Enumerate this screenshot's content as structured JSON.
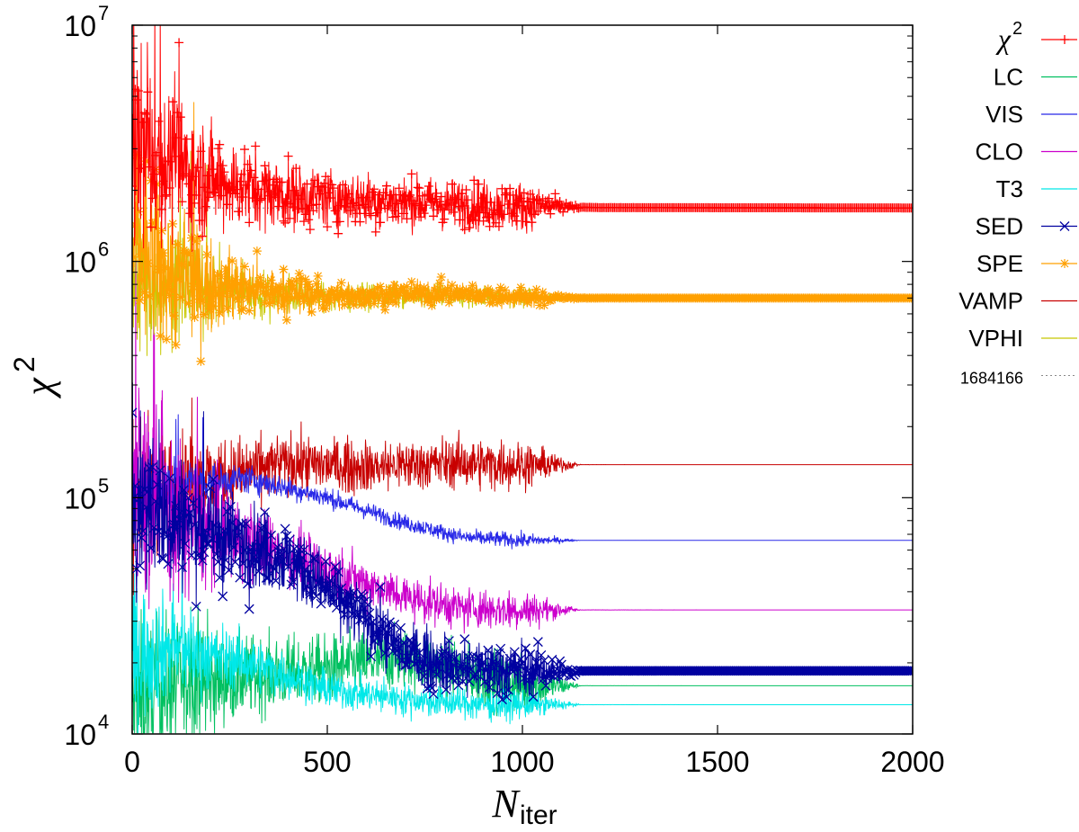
{
  "chart_data": {
    "type": "line",
    "title": "",
    "xlabel": {
      "base": "N",
      "subscript": "iter"
    },
    "ylabel": {
      "base": "χ",
      "superscript": "2"
    },
    "xlim": [
      0,
      2000
    ],
    "ylim": [
      10000,
      10000000
    ],
    "yscale": "log",
    "grid": false,
    "legend_position": "right",
    "x_ticks": [
      {
        "value": 0,
        "label": "0"
      },
      {
        "value": 500,
        "label": "500"
      },
      {
        "value": 1000,
        "label": "1000"
      },
      {
        "value": 1500,
        "label": "1500"
      },
      {
        "value": 2000,
        "label": "2000"
      }
    ],
    "y_ticks": [
      {
        "value": 10000,
        "base": "10",
        "exp": "4"
      },
      {
        "value": 100000,
        "base": "10",
        "exp": "5"
      },
      {
        "value": 1000000,
        "base": "10",
        "exp": "6"
      },
      {
        "value": 10000000,
        "base": "10",
        "exp": "7"
      }
    ],
    "series": [
      {
        "name": "χ2",
        "label_base": "χ",
        "label_sup": "2",
        "color": "#ff0000",
        "marker": "plus",
        "noise": 0.1,
        "start_noise": 0.35,
        "points": [
          [
            0,
            3000000
          ],
          [
            100,
            2600000
          ],
          [
            200,
            2200000
          ],
          [
            400,
            1900000
          ],
          [
            700,
            1780000
          ],
          [
            1000,
            1710000
          ],
          [
            1200,
            1690000
          ],
          [
            2000,
            1684166
          ]
        ]
      },
      {
        "name": "LC",
        "color": "#00c060",
        "marker": "none",
        "noise": 0.12,
        "start_noise": 0.25,
        "points": [
          [
            0,
            13000
          ],
          [
            100,
            16000
          ],
          [
            300,
            17500
          ],
          [
            500,
            19000
          ],
          [
            700,
            21000
          ],
          [
            900,
            17500
          ],
          [
            1000,
            16000
          ],
          [
            2000,
            16000
          ]
        ]
      },
      {
        "name": "VIS",
        "color": "#2828e8",
        "marker": "none",
        "noise": 0.03,
        "start_noise": 0.15,
        "points": [
          [
            0,
            110000
          ],
          [
            100,
            115000
          ],
          [
            300,
            120000
          ],
          [
            500,
            100000
          ],
          [
            700,
            78000
          ],
          [
            850,
            68000
          ],
          [
            1000,
            66000
          ],
          [
            2000,
            66000
          ]
        ]
      },
      {
        "name": "CLO",
        "color": "#cc00cc",
        "marker": "none",
        "noise": 0.08,
        "start_noise": 0.45,
        "points": [
          [
            0,
            110000
          ],
          [
            100,
            80000
          ],
          [
            300,
            65000
          ],
          [
            500,
            50000
          ],
          [
            700,
            38000
          ],
          [
            850,
            34000
          ],
          [
            1000,
            33500
          ],
          [
            2000,
            33500
          ]
        ]
      },
      {
        "name": "T3",
        "color": "#00e8e8",
        "marker": "none",
        "noise": 0.06,
        "start_noise": 0.25,
        "points": [
          [
            0,
            22000
          ],
          [
            100,
            23000
          ],
          [
            300,
            20000
          ],
          [
            500,
            15500
          ],
          [
            700,
            14000
          ],
          [
            900,
            13300
          ],
          [
            1000,
            13300
          ],
          [
            2000,
            13300
          ]
        ]
      },
      {
        "name": "SED",
        "color": "#0000a0",
        "marker": "cross",
        "noise": 0.12,
        "start_noise": 0.3,
        "points": [
          [
            0,
            100000
          ],
          [
            100,
            80000
          ],
          [
            200,
            72000
          ],
          [
            400,
            55000
          ],
          [
            550,
            35000
          ],
          [
            700,
            22000
          ],
          [
            850,
            19000
          ],
          [
            1000,
            18500
          ],
          [
            2000,
            18500
          ]
        ]
      },
      {
        "name": "SPE",
        "color": "#ffa000",
        "marker": "star",
        "noise": 0.04,
        "start_noise": 0.45,
        "points": [
          [
            0,
            1200000
          ],
          [
            100,
            850000
          ],
          [
            300,
            760000
          ],
          [
            500,
            710000
          ],
          [
            800,
            740000
          ],
          [
            1000,
            700000
          ],
          [
            2000,
            700000
          ]
        ]
      },
      {
        "name": "VAMP",
        "color": "#c80000",
        "marker": "none",
        "noise": 0.1,
        "start_noise": 0.2,
        "points": [
          [
            0,
            100000
          ],
          [
            200,
            120000
          ],
          [
            400,
            140000
          ],
          [
            600,
            135000
          ],
          [
            800,
            140000
          ],
          [
            1000,
            138000
          ],
          [
            2000,
            138000
          ]
        ]
      },
      {
        "name": "VPHI",
        "color": "#c8c800",
        "marker": "none",
        "noise": 0.04,
        "start_noise": 0.35,
        "points": [
          [
            0,
            900000
          ],
          [
            100,
            800000
          ],
          [
            300,
            730000
          ],
          [
            500,
            710000
          ],
          [
            800,
            715000
          ],
          [
            1000,
            705000
          ],
          [
            2000,
            705000
          ]
        ]
      },
      {
        "name": "1684166",
        "color": "#888888",
        "marker": "none",
        "dashed": true,
        "constant": 1684166
      }
    ]
  }
}
